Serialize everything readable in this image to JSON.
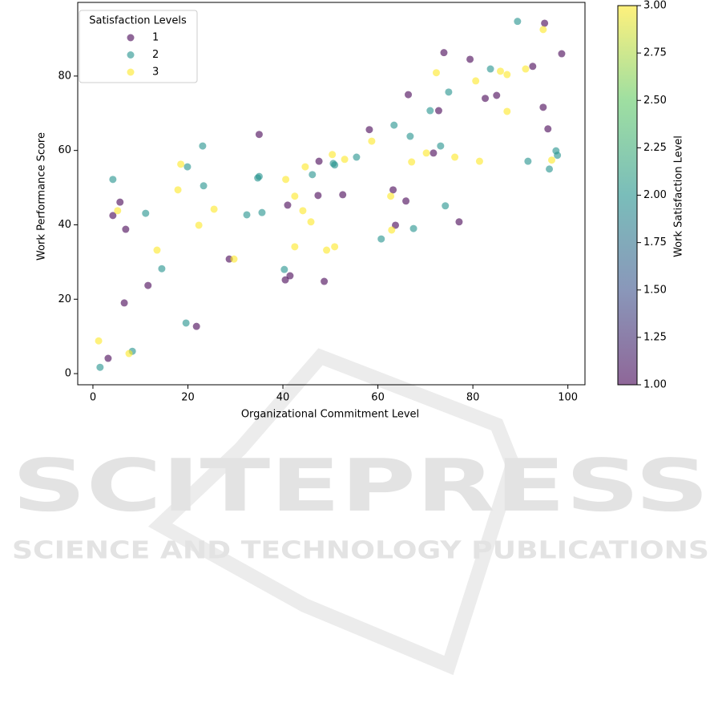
{
  "chart_data": {
    "type": "scatter",
    "xlabel": "Organizational Commitment Level",
    "ylabel": "Work Performance Score",
    "xlim": [
      -3.2,
      103.6
    ],
    "xticks": [
      0,
      20,
      40,
      60,
      80,
      100
    ],
    "ylim": [
      -3,
      99.8
    ],
    "yticks": [
      0,
      20,
      40,
      60,
      80
    ],
    "legend_title": "Satisfaction Levels",
    "legend_position": "upper left",
    "series": [
      {
        "name": "1",
        "color": "#440154",
        "x": [
          3.2,
          4.2,
          5.7,
          6.9,
          6.6,
          11.6,
          21.8,
          28.7,
          35.0,
          40.5,
          41.5,
          41.0,
          47.4,
          47.6,
          48.7,
          52.6,
          58.2,
          63.2,
          63.7,
          65.9,
          66.4,
          71.7,
          72.8,
          73.9,
          77.1,
          79.4,
          82.6,
          85.0,
          92.6,
          94.8,
          95.1,
          95.8,
          98.7
        ],
        "values": [
          4.1,
          42.5,
          46.1,
          38.8,
          19.0,
          23.7,
          12.7,
          30.8,
          64.3,
          25.2,
          26.3,
          45.3,
          47.9,
          57.1,
          24.8,
          48.1,
          65.6,
          49.4,
          39.9,
          46.4,
          75.0,
          59.3,
          70.7,
          86.3,
          40.8,
          84.5,
          74.0,
          74.8,
          82.6,
          71.6,
          94.2,
          65.8,
          86.0
        ]
      },
      {
        "name": "2",
        "color": "#21918c",
        "x": [
          1.5,
          4.2,
          8.3,
          11.1,
          14.5,
          19.6,
          19.9,
          23.1,
          23.3,
          32.4,
          34.7,
          35.0,
          35.6,
          40.3,
          46.2,
          50.6,
          50.9,
          55.5,
          60.7,
          63.4,
          66.8,
          67.5,
          71.0,
          73.2,
          74.2,
          74.9,
          83.7,
          89.4,
          91.6,
          96.1,
          97.5,
          97.8
        ],
        "values": [
          1.7,
          52.2,
          6.0,
          43.1,
          28.2,
          13.6,
          55.6,
          61.2,
          50.5,
          42.7,
          52.6,
          53.0,
          43.3,
          28.0,
          53.5,
          56.5,
          56.1,
          58.2,
          36.2,
          66.8,
          63.8,
          39.0,
          70.7,
          61.2,
          45.1,
          75.7,
          81.9,
          94.7,
          57.1,
          55.0,
          59.9,
          58.7
        ]
      },
      {
        "name": "3",
        "color": "#fde725",
        "x": [
          1.2,
          5.2,
          7.6,
          13.5,
          17.9,
          18.5,
          22.3,
          25.5,
          29.7,
          40.6,
          42.5,
          42.5,
          44.2,
          44.7,
          45.9,
          49.2,
          50.4,
          50.9,
          53.0,
          58.7,
          62.7,
          62.9,
          67.1,
          70.2,
          72.3,
          76.2,
          80.6,
          81.4,
          85.8,
          87.2,
          87.2,
          91.1,
          94.8,
          96.6
        ],
        "values": [
          8.8,
          43.8,
          5.4,
          33.2,
          49.4,
          56.3,
          39.9,
          44.2,
          30.8,
          52.2,
          47.7,
          34.1,
          43.8,
          55.6,
          40.8,
          33.2,
          58.9,
          34.1,
          57.6,
          62.5,
          47.7,
          38.6,
          56.9,
          59.3,
          80.9,
          58.2,
          78.7,
          57.1,
          81.3,
          80.4,
          70.5,
          81.9,
          92.5,
          57.4
        ]
      }
    ],
    "alpha": 0.6,
    "colorbar": {
      "label": "Work Satisfaction Level",
      "clim": [
        1,
        3
      ],
      "colors": [
        "#440154",
        "#3b528b",
        "#21918c",
        "#5ec962",
        "#fde725"
      ],
      "ticks": [
        {
          "value": 1,
          "label": "1.00"
        },
        {
          "value": 1.25,
          "label": "1.25"
        },
        {
          "value": 1.5,
          "label": "1.50"
        },
        {
          "value": 1.75,
          "label": "1.75"
        },
        {
          "value": 2,
          "label": "2.00"
        },
        {
          "value": 2.25,
          "label": "2.25"
        },
        {
          "value": 2.5,
          "label": "2.50"
        },
        {
          "value": 2.75,
          "label": "2.75"
        },
        {
          "value": 3,
          "label": "3.00"
        }
      ]
    }
  },
  "watermark": {
    "title": "SCITEPRESS",
    "subtitle": "SCIENCE AND TECHNOLOGY PUBLICATIONS"
  }
}
